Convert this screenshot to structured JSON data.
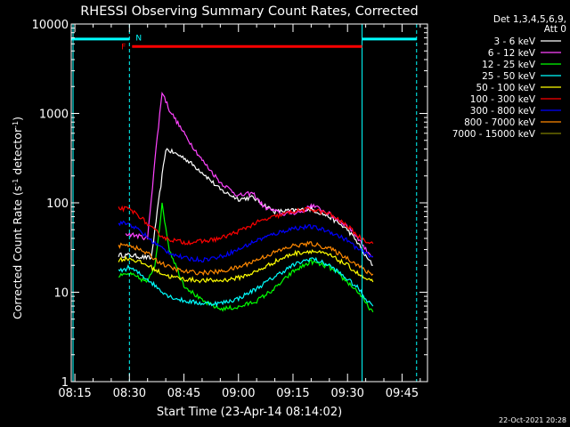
{
  "chart_data": {
    "type": "line",
    "title": "RHESSI Observing Summary Count Rates, Corrected",
    "xlabel": "Start Time (23-Apr-14 08:14:02)",
    "ylabel_main": "Corrected Count Rate (s",
    "ylabel_sup": "-1",
    "ylabel_mid": " detector",
    "ylabel_end": ")",
    "y_scale": "log",
    "ylim": [
      1,
      10000
    ],
    "xlim": [
      "08:14",
      "09:52"
    ],
    "x_ticks": [
      "08:15",
      "08:30",
      "08:45",
      "09:00",
      "09:15",
      "09:30",
      "09:45"
    ],
    "y_ticks": [
      "1",
      "10",
      "100",
      "1000",
      "10000"
    ],
    "legend_position": "top-right",
    "legend_header": [
      "Det 1,3,4,5,6,9,",
      "Att 0"
    ],
    "series": [
      {
        "name": "3 - 6 keV",
        "color": "#ffffff",
        "x": [
          "08:27",
          "08:30",
          "08:36",
          "08:38",
          "08:40",
          "08:45",
          "08:50",
          "08:55",
          "09:00",
          "09:04",
          "09:07",
          "09:10",
          "09:15",
          "09:20",
          "09:25",
          "09:30",
          "09:33",
          "09:35",
          "09:37"
        ],
        "values": [
          26,
          26,
          24,
          100,
          400,
          320,
          220,
          140,
          110,
          115,
          95,
          80,
          82,
          85,
          70,
          50,
          35,
          25,
          20
        ]
      },
      {
        "name": "6 - 12 keV",
        "color": "#ff44ff",
        "x": [
          "08:29",
          "08:32",
          "08:35",
          "08:37",
          "08:39",
          "08:41",
          "08:45",
          "08:50",
          "08:55",
          "09:00",
          "09:04",
          "09:07",
          "09:12",
          "09:18",
          "09:20",
          "09:25",
          "09:30",
          "09:33",
          "09:35",
          "09:37"
        ],
        "values": [
          45,
          43,
          40,
          300,
          1750,
          1100,
          600,
          300,
          170,
          120,
          128,
          90,
          75,
          80,
          95,
          75,
          55,
          40,
          30,
          25
        ]
      },
      {
        "name": "12 - 25 keV",
        "color": "#00ff00",
        "x": [
          "08:27",
          "08:30",
          "08:35",
          "08:37",
          "08:39",
          "08:41",
          "08:45",
          "08:50",
          "08:55",
          "09:00",
          "09:05",
          "09:10",
          "09:15",
          "09:20",
          "09:25",
          "09:30",
          "09:33",
          "09:35",
          "09:37"
        ],
        "values": [
          15,
          16,
          13,
          20,
          95,
          30,
          12,
          8,
          6.5,
          6.8,
          8,
          11,
          17,
          22,
          19,
          13,
          10,
          7.5,
          6
        ]
      },
      {
        "name": "25 - 50 keV",
        "color": "#00ffff",
        "x": [
          "08:27",
          "08:30",
          "08:35",
          "08:38",
          "08:41",
          "08:45",
          "08:50",
          "08:55",
          "09:00",
          "09:05",
          "09:10",
          "09:15",
          "09:20",
          "09:25",
          "09:30",
          "09:33",
          "09:35",
          "09:37"
        ],
        "values": [
          17,
          19,
          14,
          11,
          9,
          8,
          7.5,
          7.5,
          8.5,
          11,
          15,
          20,
          24,
          20,
          14,
          11,
          8.5,
          7
        ]
      },
      {
        "name": "50 - 100 keV",
        "color": "#ffff00",
        "x": [
          "08:27",
          "08:30",
          "08:35",
          "08:38",
          "08:41",
          "08:45",
          "08:50",
          "08:55",
          "09:00",
          "09:05",
          "09:10",
          "09:15",
          "09:20",
          "09:25",
          "09:30",
          "09:33",
          "09:35",
          "09:37"
        ],
        "values": [
          23,
          24,
          20,
          17,
          15,
          14,
          13.5,
          13.5,
          14.5,
          17,
          22,
          27,
          29,
          26,
          20,
          16,
          14,
          13
        ]
      },
      {
        "name": "100 - 300 keV",
        "color": "#ff0000",
        "x": [
          "08:27",
          "08:30",
          "08:33",
          "08:36",
          "08:40",
          "08:45",
          "08:50",
          "08:55",
          "09:00",
          "09:05",
          "09:10",
          "09:15",
          "09:20",
          "09:25",
          "09:30",
          "09:33",
          "09:35",
          "09:37"
        ],
        "values": [
          87,
          85,
          70,
          52,
          40,
          36,
          37,
          40,
          48,
          60,
          70,
          80,
          85,
          75,
          55,
          42,
          38,
          35
        ]
      },
      {
        "name": "300 - 800 keV",
        "color": "#0000ff",
        "x": [
          "08:27",
          "08:30",
          "08:33",
          "08:36",
          "08:40",
          "08:45",
          "08:50",
          "08:55",
          "09:00",
          "09:05",
          "09:10",
          "09:15",
          "09:20",
          "09:25",
          "09:30",
          "09:33",
          "09:35",
          "09:37"
        ],
        "values": [
          60,
          58,
          48,
          38,
          29,
          24,
          23,
          25,
          30,
          38,
          45,
          52,
          54,
          48,
          38,
          30,
          27,
          25
        ]
      },
      {
        "name": "800 - 7000 keV",
        "color": "#ff8800",
        "x": [
          "08:27",
          "08:30",
          "08:35",
          "08:38",
          "08:41",
          "08:45",
          "08:50",
          "08:55",
          "09:00",
          "09:05",
          "09:10",
          "09:15",
          "09:20",
          "09:25",
          "09:30",
          "09:33",
          "09:35",
          "09:37"
        ],
        "values": [
          33,
          34,
          27,
          22,
          19,
          17,
          16.5,
          17,
          19,
          23,
          28,
          33,
          35,
          31,
          24,
          20,
          17,
          16
        ]
      },
      {
        "name": "7000 - 15000 keV",
        "color": "#808000",
        "x": [],
        "values": []
      }
    ],
    "annotations": [
      {
        "label": "F",
        "color": "#ff0000",
        "x_start": "08:30",
        "x_end": "09:34",
        "y": 5600,
        "kind": "flag-bar"
      },
      {
        "label": "N",
        "color": "#00ffff",
        "x": "08:31",
        "y": 7000,
        "kind": "flag-text"
      }
    ],
    "night_bars": [
      {
        "x_start": "08:14",
        "x_end": "08:30",
        "y": 6800
      },
      {
        "x_start": "09:34",
        "x_end": "09:49",
        "y": 6800
      }
    ],
    "vlines": [
      {
        "x": "08:14:30",
        "style": "solid"
      },
      {
        "x": "08:30",
        "style": "dashed"
      },
      {
        "x": "09:34",
        "style": "solid"
      },
      {
        "x": "09:49",
        "style": "dashed"
      }
    ],
    "colors": {
      "axis": "#ffffff",
      "background": "#000000",
      "night": "#00ffff"
    }
  },
  "footer_timestamp": "22-Oct-2021 20:28"
}
